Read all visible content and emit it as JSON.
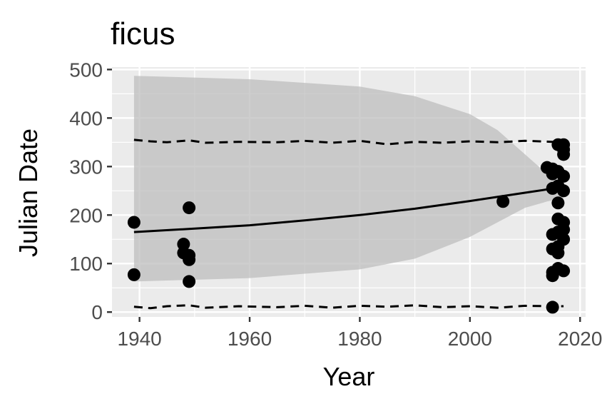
{
  "chart_data": {
    "type": "scatter",
    "title": "ficus",
    "xlabel": "Year",
    "ylabel": "Julian Date",
    "xlim": [
      1935,
      2021
    ],
    "ylim": [
      -10,
      505
    ],
    "x_ticks": [
      1940,
      1960,
      1980,
      2000,
      2020
    ],
    "x_tick_labels": [
      "1940",
      "1960",
      "1980",
      "2000",
      "2020"
    ],
    "y_ticks": [
      0,
      100,
      200,
      300,
      400,
      500
    ],
    "y_tick_labels": [
      "0",
      "100",
      "200",
      "300",
      "400",
      "500"
    ],
    "grid": true,
    "colors": {
      "panel": "#ebebeb",
      "grid": "#ffffff",
      "ribbon": "#bdbdbd",
      "points": "#000000",
      "fit": "#000000"
    },
    "points": [
      {
        "x": 1939,
        "y": 185
      },
      {
        "x": 1939,
        "y": 77
      },
      {
        "x": 1948,
        "y": 140
      },
      {
        "x": 1948,
        "y": 122
      },
      {
        "x": 1949,
        "y": 215
      },
      {
        "x": 1949,
        "y": 117
      },
      {
        "x": 1949,
        "y": 108
      },
      {
        "x": 1949,
        "y": 63
      },
      {
        "x": 2006,
        "y": 228
      },
      {
        "x": 2014,
        "y": 298
      },
      {
        "x": 2015,
        "y": 295
      },
      {
        "x": 2015,
        "y": 285
      },
      {
        "x": 2015,
        "y": 255
      },
      {
        "x": 2015,
        "y": 160
      },
      {
        "x": 2015,
        "y": 130
      },
      {
        "x": 2015,
        "y": 82
      },
      {
        "x": 2015,
        "y": 75
      },
      {
        "x": 2015,
        "y": 10
      },
      {
        "x": 2016,
        "y": 345
      },
      {
        "x": 2016,
        "y": 290
      },
      {
        "x": 2016,
        "y": 260
      },
      {
        "x": 2016,
        "y": 225
      },
      {
        "x": 2016,
        "y": 192
      },
      {
        "x": 2016,
        "y": 165
      },
      {
        "x": 2016,
        "y": 135
      },
      {
        "x": 2016,
        "y": 122
      },
      {
        "x": 2016,
        "y": 90
      },
      {
        "x": 2017,
        "y": 345
      },
      {
        "x": 2017,
        "y": 335
      },
      {
        "x": 2017,
        "y": 325
      },
      {
        "x": 2017,
        "y": 280
      },
      {
        "x": 2017,
        "y": 250
      },
      {
        "x": 2017,
        "y": 185
      },
      {
        "x": 2017,
        "y": 170
      },
      {
        "x": 2017,
        "y": 150
      },
      {
        "x": 2017,
        "y": 85
      }
    ],
    "fit_line": {
      "x": [
        1939,
        1950,
        1960,
        1970,
        1980,
        1990,
        2000,
        2010,
        2017
      ],
      "y": [
        165,
        172,
        179,
        189,
        200,
        213,
        229,
        246,
        258
      ]
    },
    "ribbon": {
      "x": [
        1939,
        1960,
        1980,
        1990,
        2000,
        2005,
        2010,
        2014,
        2017
      ],
      "upper": [
        487,
        480,
        465,
        445,
        408,
        375,
        325,
        285,
        265
      ],
      "lower": [
        63,
        70,
        88,
        110,
        155,
        185,
        215,
        228,
        235
      ]
    },
    "upper_dashed": {
      "x": [
        1939,
        1942,
        1945,
        1949,
        1952,
        1958,
        1965,
        1970,
        1975,
        1980,
        1985,
        1990,
        1995,
        2000,
        2005,
        2010,
        2015,
        2017
      ],
      "y": [
        355,
        352,
        350,
        354,
        349,
        351,
        350,
        353,
        349,
        353,
        346,
        351,
        349,
        352,
        350,
        353,
        351,
        352
      ]
    },
    "lower_dashed": {
      "x": [
        1939,
        1942,
        1945,
        1949,
        1952,
        1958,
        1965,
        1970,
        1975,
        1980,
        1985,
        1990,
        1995,
        2000,
        2005,
        2010,
        2015,
        2017
      ],
      "y": [
        11,
        8,
        12,
        14,
        9,
        12,
        10,
        13,
        9,
        13,
        11,
        14,
        10,
        12,
        9,
        13,
        12,
        12
      ]
    }
  }
}
